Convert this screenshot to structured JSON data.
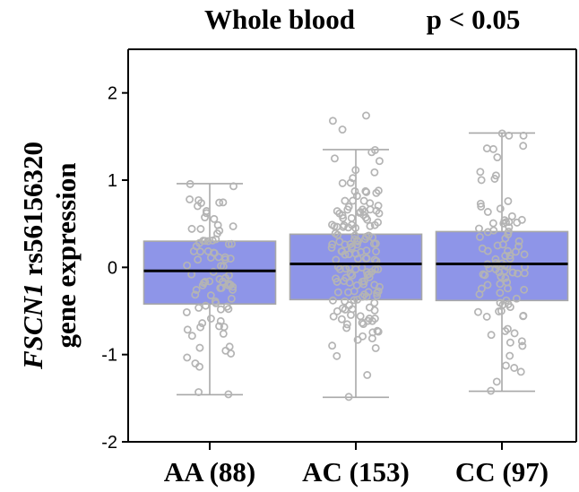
{
  "chart_data": {
    "type": "box",
    "title": "Whole blood",
    "annotation": "p < 0.05",
    "ylabel_gene": "FSCN1",
    "ylabel_rest": " rs56156320",
    "ylabel_line2": "gene expression",
    "ylim": [
      -2,
      2.5
    ],
    "yticks": [
      -2,
      -1,
      0,
      1,
      2
    ],
    "grid": false,
    "box_color": "#8e95e8",
    "box_edge_color": "#a8a8a8",
    "point_color": "#b4b4b4",
    "median_color": "#000000",
    "categories": [
      "AA (88)",
      "AC (153)",
      "CC (97)"
    ],
    "boxes": [
      {
        "category": "AA (88)",
        "whisker_low": -1.46,
        "q1": -0.42,
        "median": -0.04,
        "q3": 0.3,
        "whisker_high": 0.96,
        "n": 88
      },
      {
        "category": "AC (153)",
        "whisker_low": -1.49,
        "q1": -0.37,
        "median": 0.04,
        "q3": 0.38,
        "whisker_high": 1.35,
        "n": 153
      },
      {
        "category": "CC (97)",
        "whisker_low": -1.42,
        "q1": -0.38,
        "median": 0.04,
        "q3": 0.41,
        "whisker_high": 1.54,
        "n": 97
      }
    ],
    "outliers": [
      {
        "category": "AC (153)",
        "values": [
          1.74,
          1.68,
          1.58
        ]
      }
    ]
  }
}
